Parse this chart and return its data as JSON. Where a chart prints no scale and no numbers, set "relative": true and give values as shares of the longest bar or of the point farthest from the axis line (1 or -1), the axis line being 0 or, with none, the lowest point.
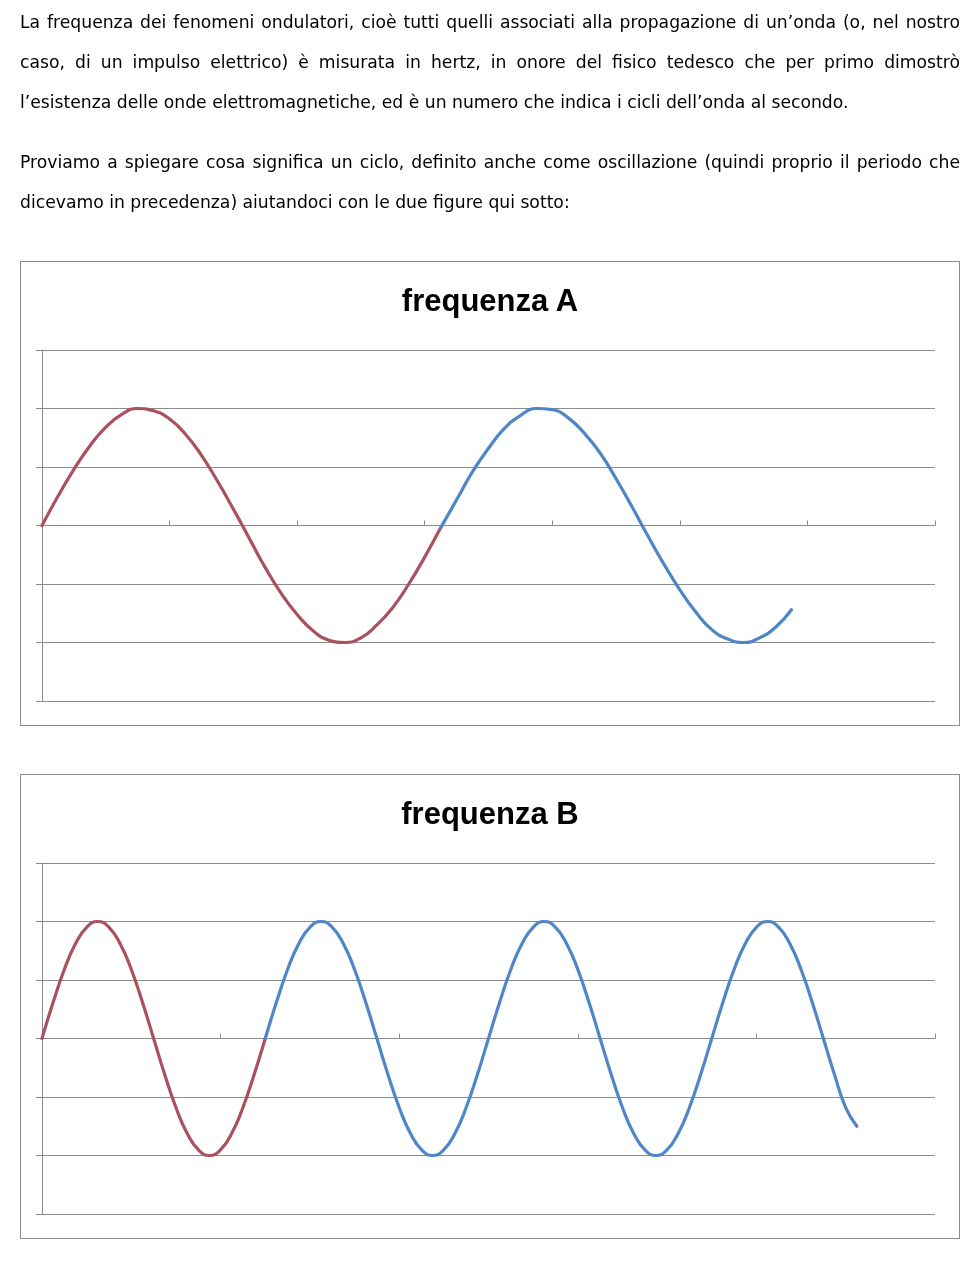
{
  "chart_data": [
    {
      "type": "line",
      "title": "frequenza A",
      "relative": true,
      "grid": "y",
      "marker": "none",
      "annotations": [
        "La frequenza dei fenomeni ondulatori, cioè tutti quelli associati alla propagazione di un’onda (o, nel nostro caso, di un impulso elettrico) è misurata in hertz, in onore del fisico tedesco che per primo dimostrò l’esistenza delle onde elettromagnetiche, ed è un numero che indica i cicli dell’onda al secondo.",
        "Proviamo a spiegare cosa significa un ciclo, definito anche come oscillazione (quindi proprio il periodo che dicevamo in precedenza) aiutandoci con le due figure qui sotto:"
      ],
      "categories": [
        null,
        null,
        null,
        null,
        null,
        null,
        null,
        null,
        null,
        null,
        null,
        null,
        null,
        null,
        null,
        null,
        null,
        null,
        null,
        null,
        null,
        null,
        null,
        null,
        null,
        null,
        null,
        null,
        null,
        null,
        null,
        null,
        null,
        null,
        null,
        null,
        null,
        null,
        null,
        null,
        null,
        null,
        null,
        null,
        null,
        null,
        null,
        null,
        null,
        null,
        null,
        null,
        null,
        null,
        null,
        null,
        null
      ],
      "series": [
        {
          "color": "#a9515c",
          "values": [
            0,
            0.25,
            0.48,
            0.68,
            0.84,
            0.95,
            1,
            0.98,
            0.91,
            0.78,
            0.6,
            0.38,
            0.14,
            -0.11,
            -0.36,
            -0.58,
            -0.76,
            -0.9,
            -0.98,
            -1,
            -0.96,
            -0.85,
            -0.7,
            -0.5,
            -0.27,
            -0.02,
            null,
            null,
            null,
            null,
            null,
            null,
            null,
            null,
            null,
            null,
            null,
            null,
            null,
            null,
            null,
            null,
            null,
            null,
            null,
            null,
            null,
            null,
            null,
            null,
            null,
            null,
            null,
            null,
            null,
            null,
            null
          ]
        },
        {
          "color": "#4f86c6",
          "values": [
            null,
            null,
            null,
            null,
            null,
            null,
            null,
            null,
            null,
            null,
            null,
            null,
            null,
            null,
            null,
            null,
            null,
            null,
            null,
            null,
            null,
            null,
            null,
            null,
            null,
            -0.02,
            0.22,
            0.46,
            0.66,
            0.83,
            0.94,
            1,
            0.99,
            0.92,
            0.79,
            0.62,
            0.4,
            0.16,
            -0.09,
            -0.33,
            -0.55,
            -0.74,
            -0.89,
            -0.97,
            -1,
            -0.96,
            -0.87,
            -0.72,
            null,
            null,
            null,
            null,
            null,
            null,
            null,
            null,
            null
          ]
        }
      ]
    },
    {
      "type": "line",
      "title": "frequenza B",
      "relative": true,
      "grid": "y",
      "marker": "none",
      "categories": [
        null,
        null,
        null,
        null,
        null,
        null,
        null,
        null,
        null,
        null,
        null,
        null,
        null,
        null,
        null,
        null,
        null,
        null,
        null,
        null,
        null,
        null,
        null,
        null,
        null,
        null,
        null,
        null,
        null,
        null,
        null,
        null,
        null,
        null,
        null,
        null,
        null,
        null,
        null,
        null,
        null,
        null,
        null,
        null,
        null,
        null,
        null,
        null,
        null,
        null,
        null,
        null,
        null,
        null,
        null,
        null,
        null,
        null,
        null,
        null,
        null,
        null,
        null,
        null,
        null,
        null,
        null,
        null,
        null,
        null,
        null,
        null,
        null,
        null,
        null,
        null,
        null,
        null,
        null,
        null,
        null
      ],
      "series": [
        {
          "color": "#a9515c",
          "values": [
            0,
            0.31,
            0.59,
            0.81,
            0.95,
            1,
            0.95,
            0.81,
            0.59,
            0.31,
            0,
            -0.31,
            -0.59,
            -0.81,
            -0.95,
            -1,
            -0.95,
            -0.81,
            -0.59,
            -0.31,
            0,
            null,
            null,
            null,
            null,
            null,
            null,
            null,
            null,
            null,
            null,
            null,
            null,
            null,
            null,
            null,
            null,
            null,
            null,
            null,
            null,
            null,
            null,
            null,
            null,
            null,
            null,
            null,
            null,
            null,
            null,
            null,
            null,
            null,
            null,
            null,
            null,
            null,
            null,
            null,
            null,
            null,
            null,
            null,
            null,
            null,
            null,
            null,
            null,
            null,
            null,
            null,
            null,
            null,
            null,
            null,
            null,
            null,
            null,
            null,
            null
          ]
        },
        {
          "color": "#4f86c6",
          "values": [
            null,
            null,
            null,
            null,
            null,
            null,
            null,
            null,
            null,
            null,
            null,
            null,
            null,
            null,
            null,
            null,
            null,
            null,
            null,
            null,
            0,
            0.31,
            0.59,
            0.81,
            0.95,
            1,
            0.95,
            0.81,
            0.59,
            0.31,
            0,
            -0.31,
            -0.59,
            -0.81,
            -0.95,
            -1,
            -0.95,
            -0.81,
            -0.59,
            -0.31,
            0,
            0.31,
            0.59,
            0.81,
            0.95,
            1,
            0.95,
            0.81,
            0.59,
            0.31,
            0,
            -0.31,
            -0.59,
            -0.81,
            -0.95,
            -1,
            -0.95,
            -0.81,
            -0.59,
            -0.31,
            0,
            0.31,
            0.59,
            0.81,
            0.95,
            1,
            0.95,
            0.81,
            0.59,
            0.31,
            0,
            -0.31,
            -0.59,
            -0.75,
            null,
            null,
            null,
            null,
            null,
            null,
            null
          ]
        }
      ]
    }
  ]
}
